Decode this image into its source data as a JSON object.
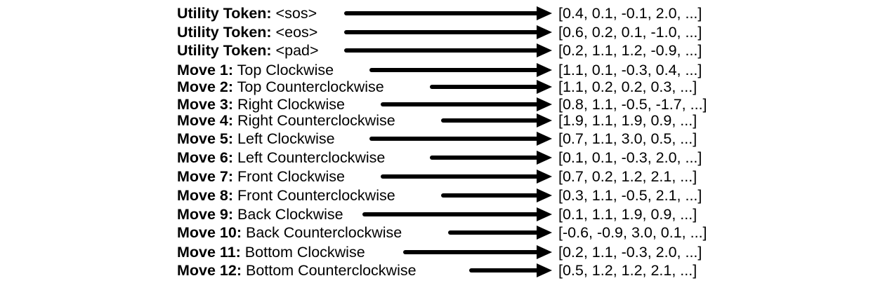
{
  "tokens": [
    {
      "prefix": "Utility Token:",
      "name": " <sos>",
      "embedding": "[0.4, 0.1, -0.1, 2.0, ...]"
    },
    {
      "prefix": "Utility Token:",
      "name": " <eos>",
      "embedding": "[0.6, 0.2, 0.1, -1.0, ...]"
    },
    {
      "prefix": "Utility Token:",
      "name": " <pad>",
      "embedding": "[0.2, 1.1, 1.2, -0.9, ...]"
    },
    {
      "prefix": "Move 1:",
      "name": " Top Clockwise",
      "embedding": "[1.1, 0.1, -0.3, 0.4, ...]"
    },
    {
      "prefix": "Move 2:",
      "name": " Top Counterclockwise",
      "embedding": "[1.1, 0.2, 0.2, 0.3, ...]"
    },
    {
      "prefix": "Move 3:",
      "name": " Right Clockwise",
      "embedding": "[0.8, 1.1, -0.5, -1.7, ...]"
    },
    {
      "prefix": "Move 4:",
      "name": " Right Counterclockwise",
      "embedding": "[1.9, 1.1, 1.9, 0.9, ...]"
    },
    {
      "prefix": "Move 5:",
      "name": " Left Clockwise",
      "embedding": "[0.7, 1.1, 3.0, 0.5, ...]"
    },
    {
      "prefix": "Move 6:",
      "name": " Left Counterclockwise",
      "embedding": "[0.1, 0.1, -0.3, 2.0, ...]"
    },
    {
      "prefix": "Move 7:",
      "name": " Front Clockwise",
      "embedding": "[0.7, 0.2, 1.2, 2.1, ...]"
    },
    {
      "prefix": "Move 8:",
      "name": " Front Counterclockwise",
      "embedding": "[0.3, 1.1, -0.5, 2.1, ...]"
    },
    {
      "prefix": "Move 9:",
      "name": " Back Clockwise",
      "embedding": "[0.1, 1.1, 1.9, 0.9, ...]"
    },
    {
      "prefix": "Move 10:",
      "name": " Back Counterclockwise",
      "embedding": "[-0.6, -0.9, 3.0, 0.1, ...]"
    },
    {
      "prefix": "Move 11:",
      "name": " Bottom Clockwise",
      "embedding": "[0.2, 1.1, -0.3, 2.0, ...]"
    },
    {
      "prefix": "Move 12:",
      "name": " Bottom Counterclockwise",
      "embedding": "[0.5, 1.2, 1.2, 2.1, ...]"
    }
  ]
}
